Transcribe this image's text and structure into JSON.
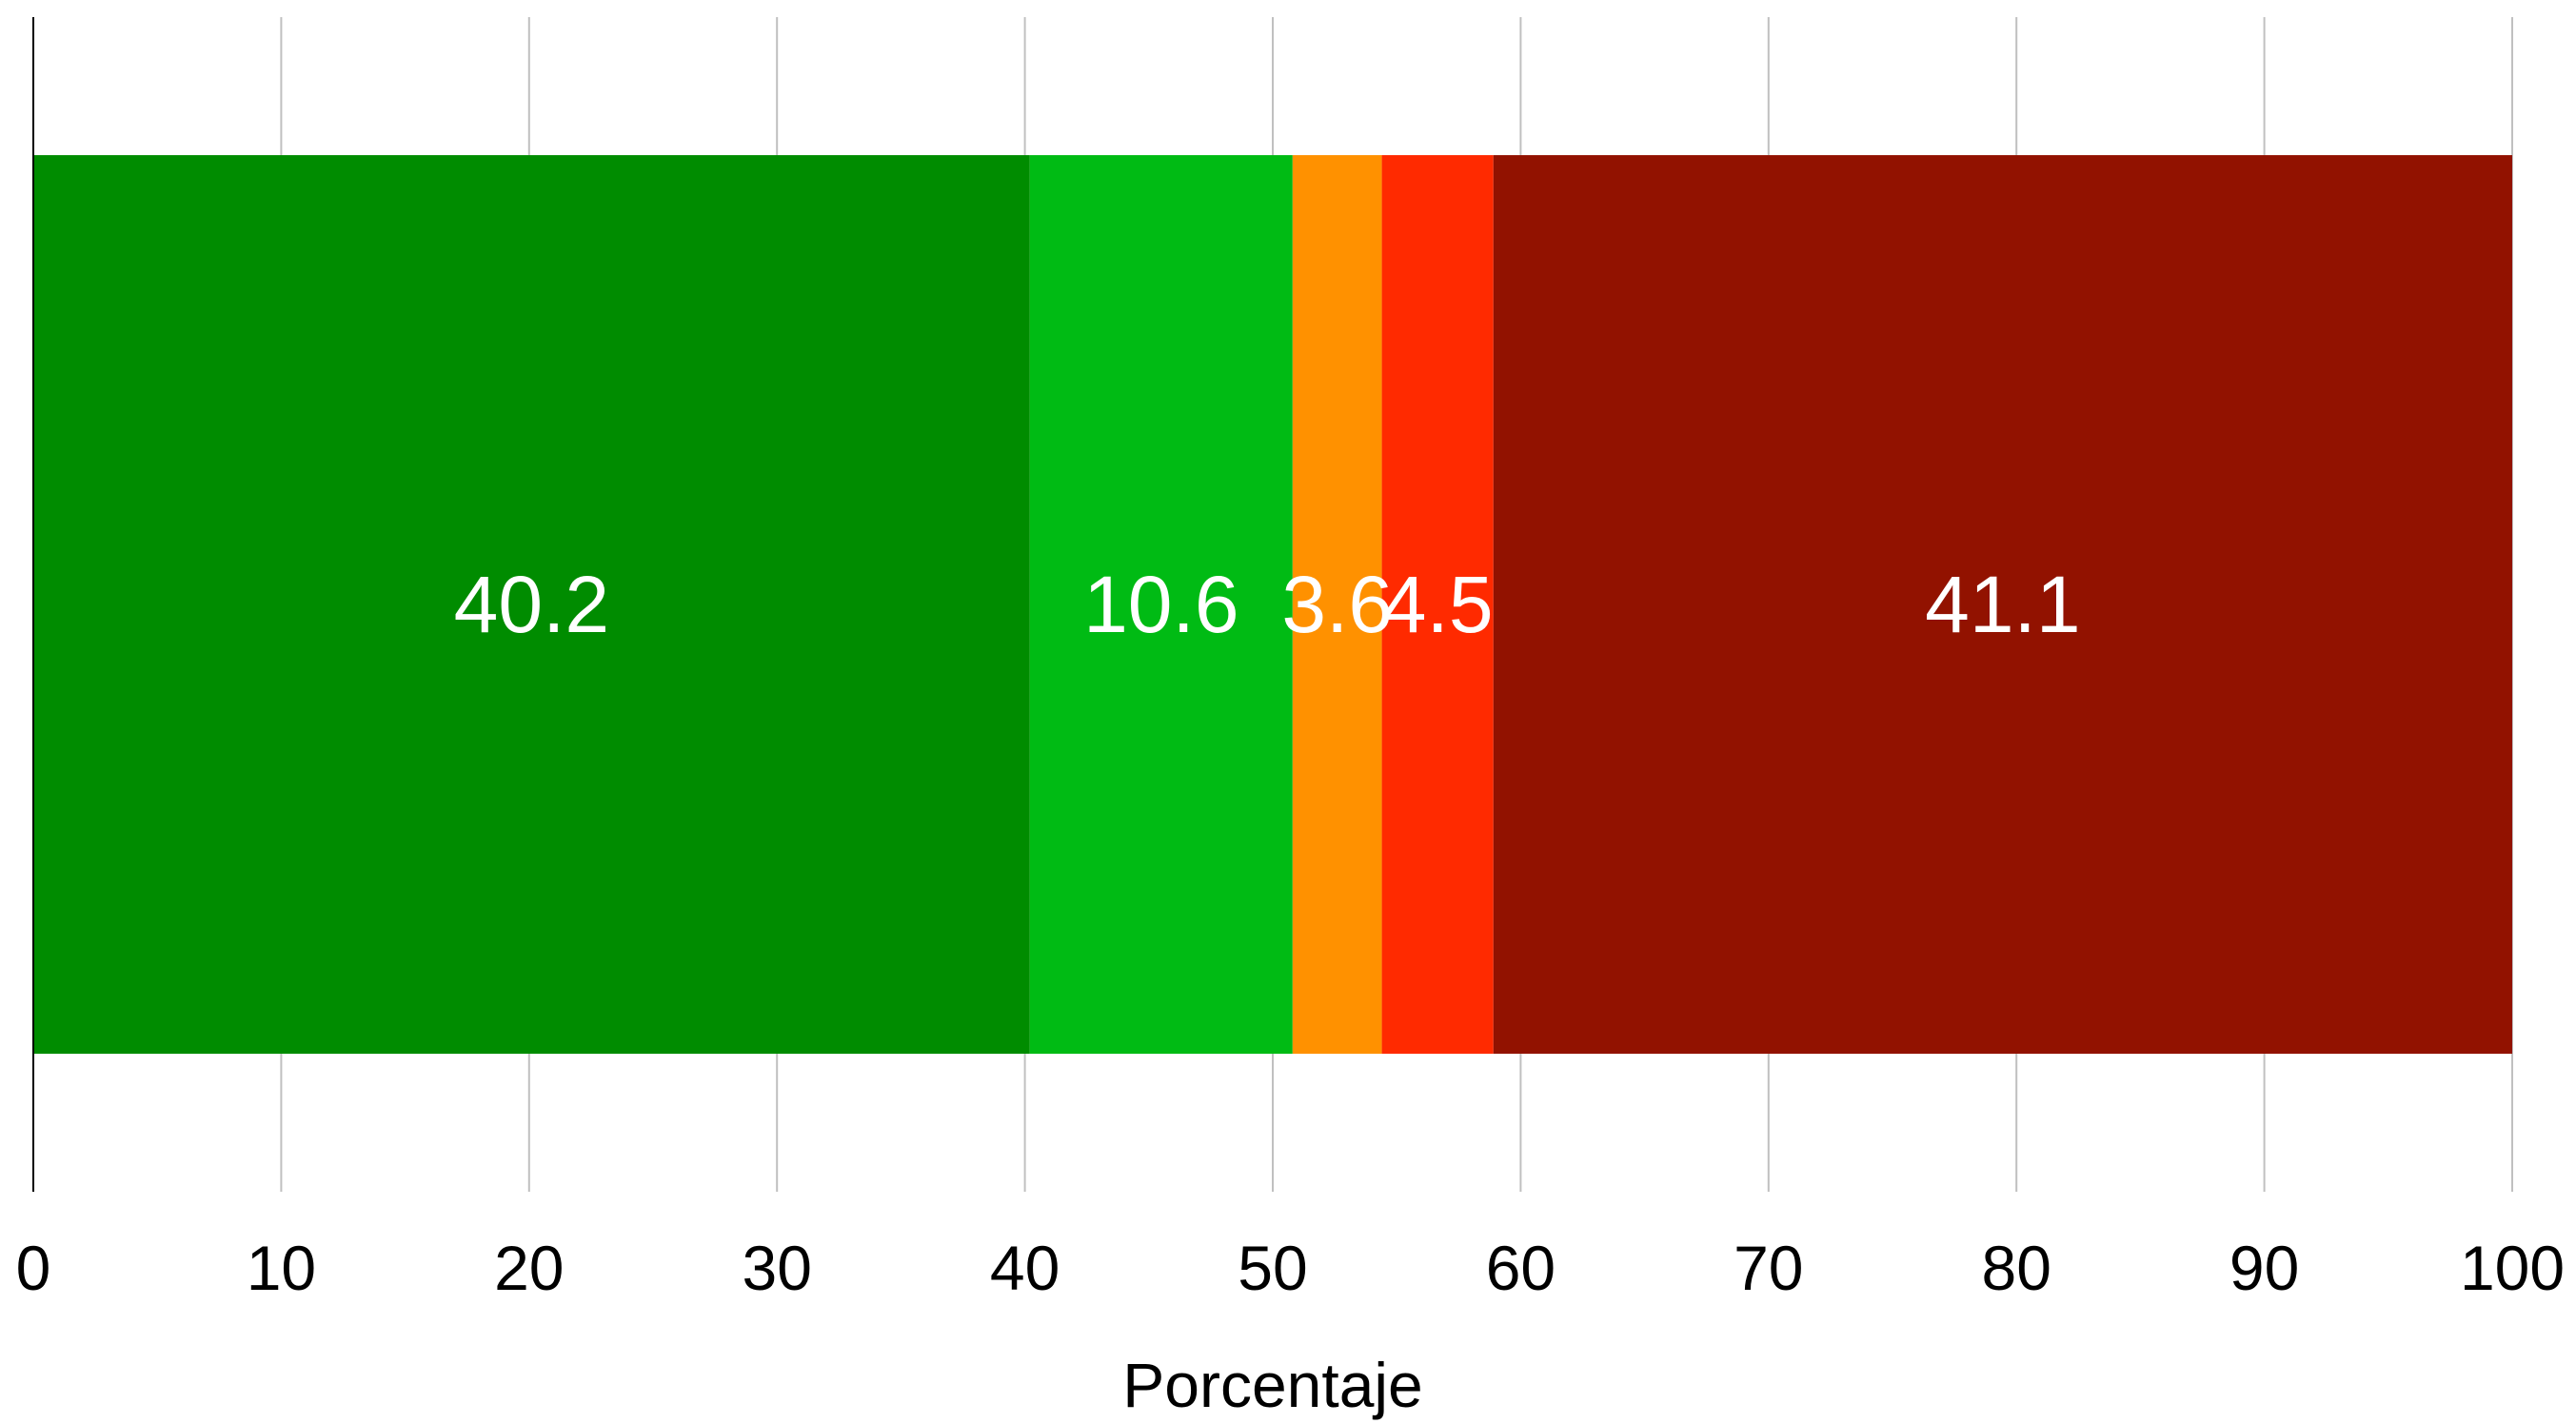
{
  "chart_data": {
    "type": "bar",
    "orientation": "horizontal",
    "stacked": true,
    "xlabel": "Porcentaje",
    "ylabel": "",
    "xlim": [
      0,
      100
    ],
    "x_ticks": [
      0,
      10,
      20,
      30,
      40,
      50,
      60,
      70,
      80,
      90,
      100
    ],
    "grid": true,
    "series": [
      {
        "value": 40.2,
        "label": "40.2",
        "color": "#008c00"
      },
      {
        "value": 10.6,
        "label": "10.6",
        "color": "#00bb14"
      },
      {
        "value": 3.6,
        "label": "3.6",
        "color": "#ff9100"
      },
      {
        "value": 4.5,
        "label": "4.5",
        "color": "#ff2a00"
      },
      {
        "value": 41.1,
        "label": "41.1",
        "color": "#921200"
      }
    ]
  }
}
